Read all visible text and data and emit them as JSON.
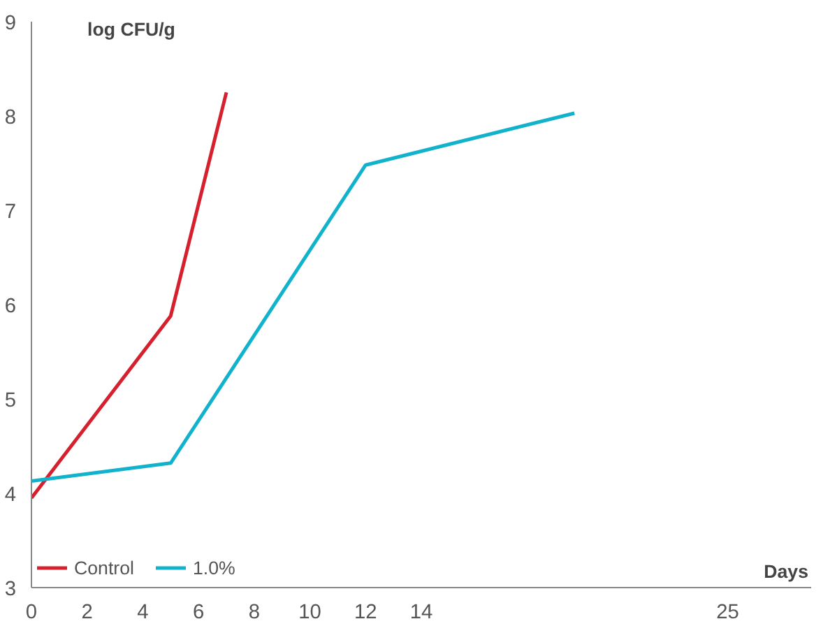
{
  "chart_data": {
    "type": "line",
    "ylabel": "log CFU/g",
    "xlabel": "Days",
    "xlim": [
      0,
      28
    ],
    "xticks": [
      0,
      2,
      4,
      6,
      8,
      10,
      12,
      14,
      25
    ],
    "ylim": [
      3,
      9
    ],
    "yticks": [
      3,
      4,
      5,
      6,
      7,
      8,
      9
    ],
    "series": [
      {
        "name": "Control",
        "color": "#d7202e",
        "x": [
          0,
          5,
          7
        ],
        "values": [
          3.95,
          5.88,
          8.25
        ]
      },
      {
        "name": "1.0%",
        "color": "#10b2cc",
        "x": [
          0,
          5,
          12,
          19.5
        ],
        "values": [
          4.13,
          4.32,
          7.48,
          8.03
        ]
      }
    ],
    "grid": false,
    "legend": "bottom left",
    "marker": "none",
    "line_style": "solid"
  }
}
